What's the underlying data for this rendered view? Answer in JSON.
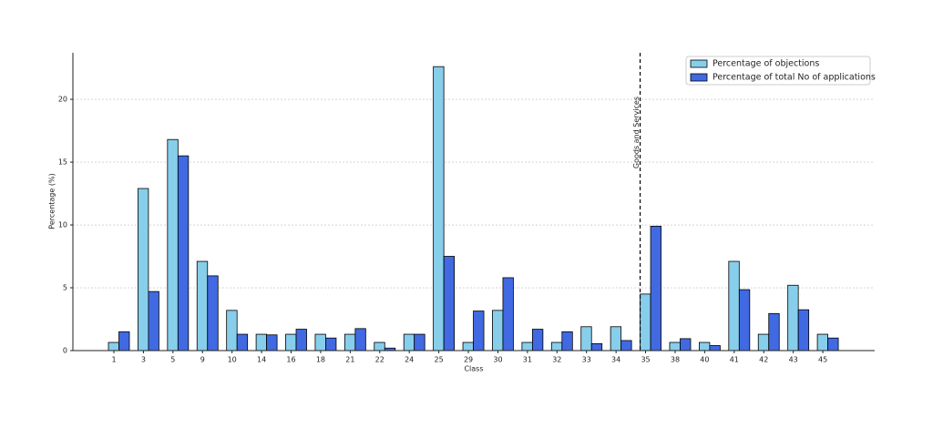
{
  "chart_data": {
    "type": "bar",
    "x_label": "Class",
    "y_label": "Percentage (%)",
    "categories": [
      "1",
      "3",
      "5",
      "9",
      "10",
      "14",
      "16",
      "18",
      "21",
      "22",
      "24",
      "25",
      "29",
      "30",
      "31",
      "32",
      "33",
      "34",
      "35",
      "38",
      "40",
      "41",
      "42",
      "43",
      "45"
    ],
    "series": [
      {
        "name": "Percentage of objections",
        "color": "#87ceeb",
        "values": [
          0.65,
          12.9,
          16.8,
          7.1,
          3.2,
          1.3,
          1.3,
          1.3,
          1.3,
          0.65,
          1.3,
          22.6,
          0.65,
          3.2,
          0.65,
          0.65,
          1.9,
          1.9,
          4.5,
          0.65,
          0.65,
          7.1,
          1.3,
          5.2,
          1.3
        ]
      },
      {
        "name": "Percentage of total No of applications",
        "color": "#4169e1",
        "values": [
          1.5,
          4.7,
          15.5,
          5.95,
          1.3,
          1.25,
          1.7,
          1.0,
          1.75,
          0.2,
          1.3,
          7.5,
          3.15,
          5.8,
          1.7,
          1.5,
          0.55,
          0.8,
          9.9,
          0.95,
          0.4,
          4.85,
          2.95,
          3.25,
          1.0
        ]
      }
    ],
    "ylim": [
      0,
      23.7
    ],
    "yticks": [
      0,
      5,
      10,
      15,
      20
    ],
    "grid": true,
    "legend": "upper right",
    "annotation": {
      "text": "Goods and Services",
      "at_category": "35"
    }
  }
}
